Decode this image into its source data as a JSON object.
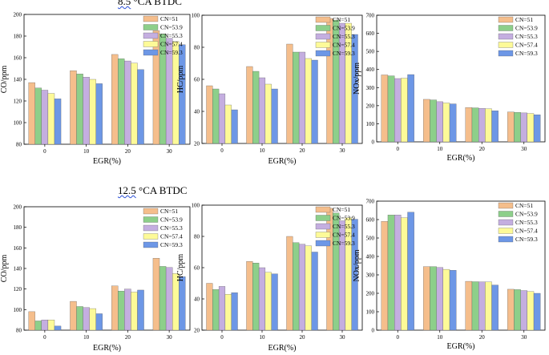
{
  "headings": {
    "top": {
      "prefix": "8.5",
      "suffix": " °CA BTDC"
    },
    "bottom": {
      "prefix": "12.5",
      "suffix": " °CA BTDC"
    }
  },
  "colors": {
    "CN=51": "#f5be8c",
    "CN=53.9": "#8dcf8a",
    "CN=55.3": "#c4aee0",
    "CN=57.4": "#fdfa98",
    "CN=59.3": "#6d97e6"
  },
  "chart_data": [
    {
      "id": "co-8-5",
      "type": "bar",
      "ylabel": "CO/ppm",
      "xlabel": "EGR(%)",
      "categories": [
        "0",
        "10",
        "20",
        "30"
      ],
      "ylim": [
        80,
        200
      ],
      "yticks": [
        "80",
        "100",
        "120",
        "140",
        "160",
        "180",
        "200"
      ],
      "series": [
        {
          "name": "CN=51",
          "values": [
            137,
            148,
            163,
            185
          ]
        },
        {
          "name": "CN=53.9",
          "values": [
            132,
            145,
            159,
            182
          ]
        },
        {
          "name": "CN=55.3",
          "values": [
            130,
            142,
            157,
            178
          ]
        },
        {
          "name": "CN=57.4",
          "values": [
            127,
            140,
            155,
            175
          ]
        },
        {
          "name": "CN=59.3",
          "values": [
            122,
            136,
            149,
            172
          ]
        }
      ]
    },
    {
      "id": "hc-8-5",
      "type": "bar",
      "ylabel": "HC/ppm",
      "xlabel": "EGR(%)",
      "categories": [
        "0",
        "10",
        "20",
        "30"
      ],
      "ylim": [
        20,
        100
      ],
      "yticks": [
        "20",
        "40",
        "60",
        "80",
        "100"
      ],
      "series": [
        {
          "name": "CN=51",
          "values": [
            56,
            68,
            82,
            98
          ]
        },
        {
          "name": "CN=53.9",
          "values": [
            54,
            65,
            77,
            97
          ]
        },
        {
          "name": "CN=55.3",
          "values": [
            51,
            61,
            77,
            95
          ]
        },
        {
          "name": "CN=57.4",
          "values": [
            44,
            57,
            73,
            95
          ]
        },
        {
          "name": "CN=59.3",
          "values": [
            41,
            54,
            72,
            88
          ]
        }
      ]
    },
    {
      "id": "nox-8-5",
      "type": "bar",
      "ylabel": "NOx/ppm",
      "xlabel": "EGR(%)",
      "categories": [
        "0",
        "10",
        "20",
        "30"
      ],
      "ylim": [
        0,
        700
      ],
      "yticks": [
        "0",
        "100",
        "200",
        "300",
        "400",
        "500",
        "600",
        "700"
      ],
      "series": [
        {
          "name": "CN=51",
          "values": [
            370,
            235,
            190,
            165
          ]
        },
        {
          "name": "CN=53.9",
          "values": [
            365,
            232,
            188,
            163
          ]
        },
        {
          "name": "CN=55.3",
          "values": [
            350,
            222,
            185,
            160
          ]
        },
        {
          "name": "CN=57.4",
          "values": [
            352,
            215,
            183,
            157
          ]
        },
        {
          "name": "CN=59.3",
          "values": [
            372,
            210,
            172,
            150
          ]
        }
      ]
    },
    {
      "id": "co-12-5",
      "type": "bar",
      "ylabel": "CO/ppm",
      "xlabel": "EGR(%)",
      "categories": [
        "0",
        "10",
        "20",
        "30"
      ],
      "ylim": [
        80,
        200
      ],
      "yticks": [
        "80",
        "100",
        "120",
        "140",
        "160",
        "180",
        "200"
      ],
      "series": [
        {
          "name": "CN=51",
          "values": [
            98,
            108,
            123,
            150
          ]
        },
        {
          "name": "CN=53.9",
          "values": [
            89,
            103,
            118,
            142
          ]
        },
        {
          "name": "CN=55.3",
          "values": [
            90,
            102,
            120,
            141
          ]
        },
        {
          "name": "CN=57.4",
          "values": [
            90,
            101,
            117,
            135
          ]
        },
        {
          "name": "CN=59.3",
          "values": [
            84,
            96,
            119,
            132
          ]
        }
      ]
    },
    {
      "id": "hc-12-5",
      "type": "bar",
      "ylabel": "HC/ppm",
      "xlabel": "EGR(%)",
      "categories": [
        "0",
        "10",
        "20",
        "30"
      ],
      "ylim": [
        20,
        100
      ],
      "yticks": [
        "20",
        "40",
        "60",
        "80",
        "100"
      ],
      "series": [
        {
          "name": "CN=51",
          "values": [
            50,
            64,
            80,
            98
          ]
        },
        {
          "name": "CN=53.9",
          "values": [
            46,
            63,
            76,
            95
          ]
        },
        {
          "name": "CN=55.3",
          "values": [
            48,
            60,
            75,
            90
          ]
        },
        {
          "name": "CN=57.4",
          "values": [
            43,
            57,
            74,
            92
          ]
        },
        {
          "name": "CN=59.3",
          "values": [
            44,
            56,
            70,
            91
          ]
        }
      ]
    },
    {
      "id": "nox-12-5",
      "type": "bar",
      "ylabel": "NOx/ppm",
      "xlabel": "EGR(%)",
      "categories": [
        "0",
        "10",
        "20",
        "30"
      ],
      "ylim": [
        0,
        700
      ],
      "yticks": [
        "0",
        "100",
        "200",
        "300",
        "400",
        "500",
        "600",
        "700"
      ],
      "series": [
        {
          "name": "CN=51",
          "values": [
            590,
            345,
            265,
            222
          ]
        },
        {
          "name": "CN=53.9",
          "values": [
            625,
            345,
            263,
            220
          ]
        },
        {
          "name": "CN=55.3",
          "values": [
            625,
            340,
            262,
            215
          ]
        },
        {
          "name": "CN=57.4",
          "values": [
            610,
            330,
            262,
            210
          ]
        },
        {
          "name": "CN=59.3",
          "values": [
            640,
            325,
            245,
            200
          ]
        }
      ]
    }
  ]
}
